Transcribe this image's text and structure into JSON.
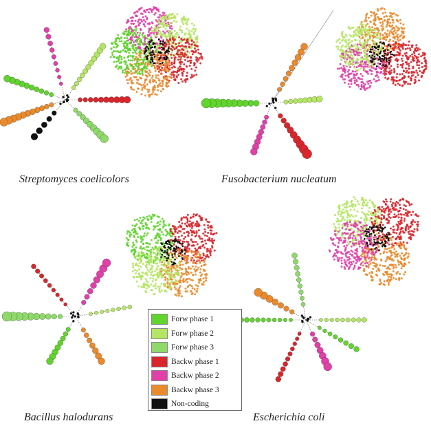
{
  "colors": {
    "forw1": "#61d42e",
    "forw2": "#b5e663",
    "forw3": "#8fd96a",
    "backw1": "#d8262c",
    "backw2": "#e040a8",
    "backw3": "#ea8a2c",
    "noncoding": "#111111"
  },
  "panels": [
    {
      "id": "streptomyces",
      "caption": "Streptomyces coelicolors"
    },
    {
      "id": "fusobacterium",
      "caption": "Fusobacterium nucleatum"
    },
    {
      "id": "bacillus",
      "caption": "Bacillus halodurans"
    },
    {
      "id": "escherichia",
      "caption": "Escherichia coli"
    }
  ],
  "legend": [
    {
      "label": "Forw phase 1",
      "color": "#61d42e"
    },
    {
      "label": "Forw phase 2",
      "color": "#b5e663"
    },
    {
      "label": "Forw phase 3",
      "color": "#8fd96a"
    },
    {
      "label": "Backw phase 1",
      "color": "#d8262c"
    },
    {
      "label": "Backw phase 2",
      "color": "#e040a8"
    },
    {
      "label": "Backw phase 3",
      "color": "#ea8a2c"
    },
    {
      "label": "Non-coding",
      "color": "#111111"
    }
  ]
}
